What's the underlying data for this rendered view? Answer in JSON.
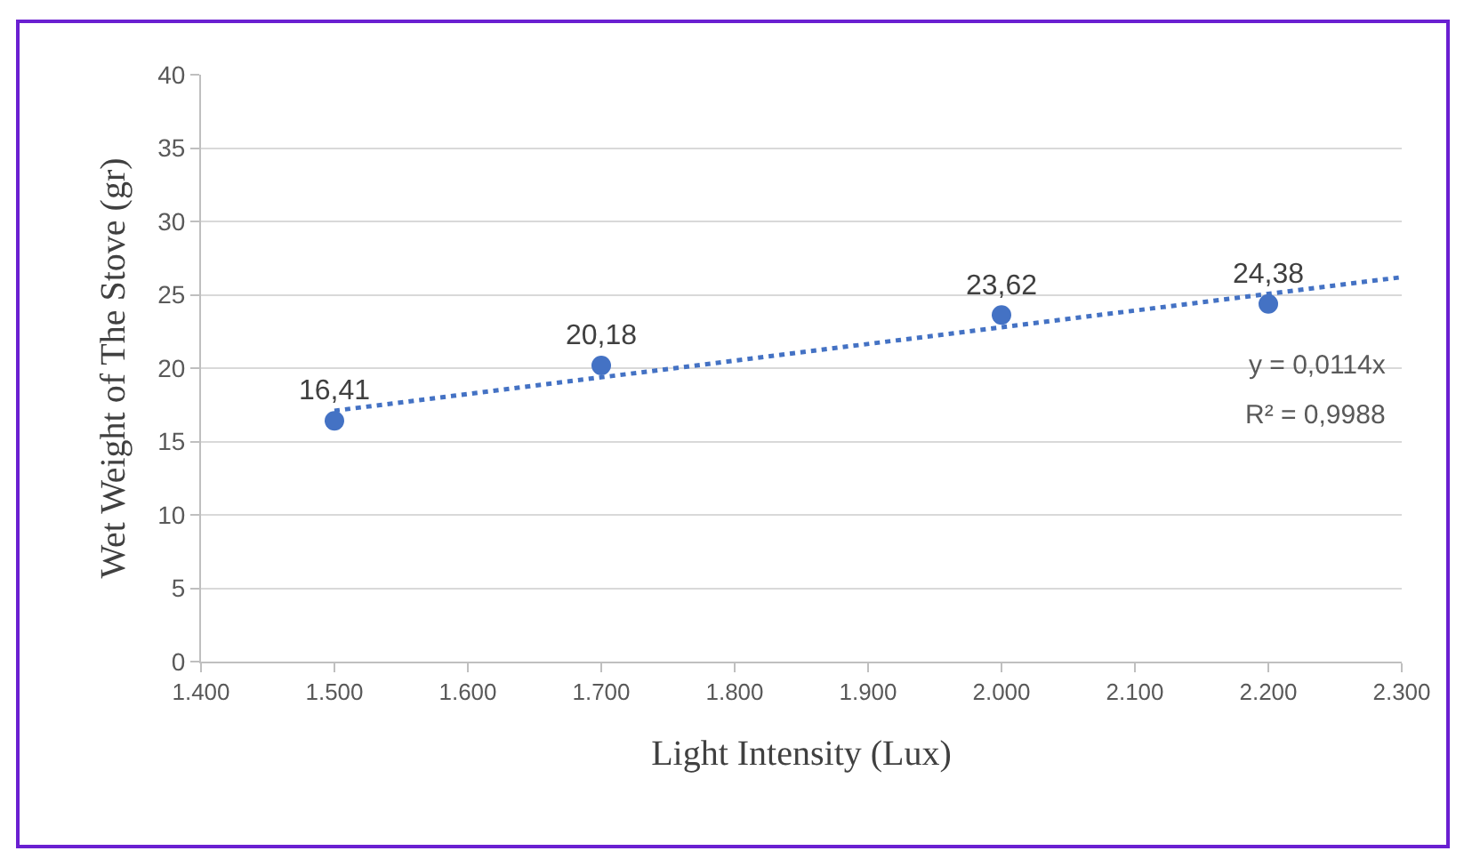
{
  "chart_data": {
    "type": "scatter",
    "xlabel": "Light Intensity (Lux)",
    "ylabel": "Wet Weight of The Stove (gr)",
    "x": [
      1500,
      1700,
      2000,
      2200
    ],
    "series": [
      {
        "color": "#4472c4",
        "values": [
          16.41,
          20.18,
          23.62,
          24.38
        ],
        "value_labels": [
          "16,41",
          "20,18",
          "23,62",
          "24,38"
        ],
        "marker": "circle"
      },
      {
        "type": "line",
        "color": "#4472c4",
        "x": [
          1500,
          2300
        ],
        "values": [
          17.1,
          26.2
        ],
        "line_style": "dotted",
        "marker": "none"
      }
    ],
    "xlim": [
      1400,
      2300
    ],
    "xticks": [
      {
        "value": 1400,
        "label": "1.400"
      },
      {
        "value": 1500,
        "label": "1.500"
      },
      {
        "value": 1600,
        "label": "1.600"
      },
      {
        "value": 1700,
        "label": "1.700"
      },
      {
        "value": 1800,
        "label": "1.800"
      },
      {
        "value": 1900,
        "label": "1.900"
      },
      {
        "value": 2000,
        "label": "2.000"
      },
      {
        "value": 2100,
        "label": "2.100"
      },
      {
        "value": 2200,
        "label": "2.200"
      },
      {
        "value": 2300,
        "label": "2.300"
      }
    ],
    "ylim": [
      0,
      40
    ],
    "yticks": [
      0,
      5,
      10,
      15,
      20,
      25,
      30,
      35,
      40
    ],
    "grid": "y",
    "annotations": [
      "y = 0,0114x",
      "R² = 0,9988"
    ]
  }
}
